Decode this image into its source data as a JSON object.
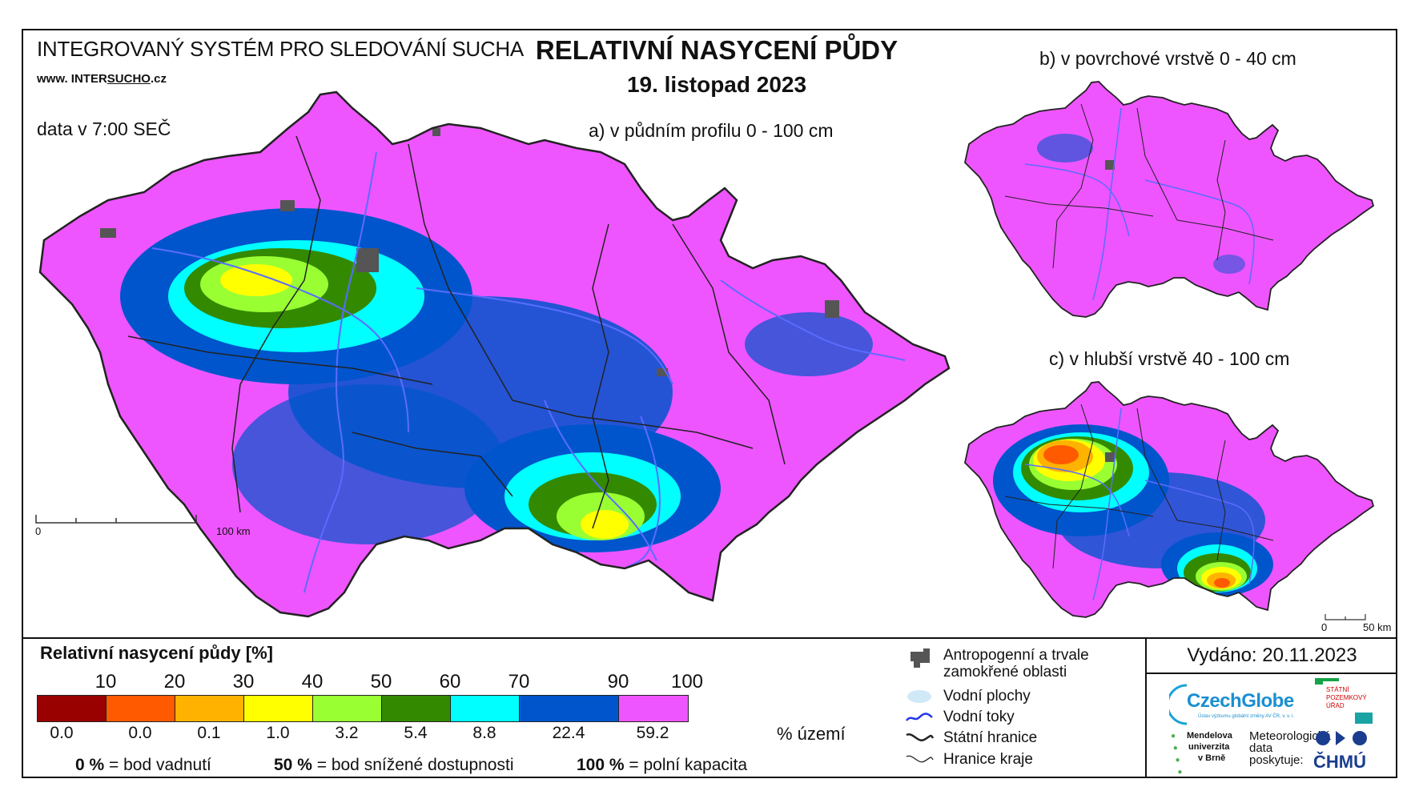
{
  "header": {
    "system_title": "INTEGROVANÝ SYSTÉM PRO SLEDOVÁNÍ SUCHA",
    "website_prefix": "www. INTER",
    "website_highlight": "SUCHO",
    "website_suffix": ".cz",
    "data_time": "data v 7:00 SEČ",
    "main_title": "RELATIVNÍ NASYCENÍ PŮDY",
    "date": "19. listopad 2023"
  },
  "maps": {
    "a_label": "a) v půdním profilu 0 - 100 cm",
    "b_label": "b) v povrchové vrstvě 0 - 40 cm",
    "c_label": "c) v hlubší vrstvě 40 - 100 cm",
    "scale_a": {
      "start": "0",
      "end": "100 km"
    },
    "scale_c": {
      "start": "0",
      "end": "50 km"
    }
  },
  "legend": {
    "title": "Relativní nasycení půdy [%]",
    "ticks": [
      "10",
      "20",
      "30",
      "40",
      "50",
      "60",
      "70",
      "90",
      "100"
    ],
    "colors": [
      "#990000",
      "#ff5a00",
      "#ffb300",
      "#ffff00",
      "#99ff33",
      "#338a00",
      "#00ffff",
      "#0055cc",
      "#ee55ff"
    ],
    "area_percent": [
      "0.0",
      "0.0",
      "0.1",
      "1.0",
      "3.2",
      "5.4",
      "8.8",
      "22.4",
      "59.2"
    ],
    "area_unit": "% území",
    "note_0_value": "0 %",
    "note_0_text": "= bod vadnutí",
    "note_50_value": "50 %",
    "note_50_text": "= bod snížené dostupnosti",
    "note_100_value": "100 %",
    "note_100_text": "= polní kapacita"
  },
  "symbols": {
    "anthropogenic": "Antropogenní a trvale zamokřené oblasti",
    "water_bodies": "Vodní plochy",
    "rivers": "Vodní toky",
    "state_border": "Státní hranice",
    "region_border": "Hranice kraje"
  },
  "footer": {
    "issued": "Vydáno: 20.11.2023",
    "czechglobe": "CzechGlobe",
    "czechglobe_sub": "Ústav výzkumu globální změny AV ČR, v. v. i.",
    "spu_line1": "STÁTNÍ",
    "spu_line2": "POZEMKOVÝ",
    "spu_line3": "ÚŘAD",
    "mendel_line1": "Mendelova",
    "mendel_line2": "univerzita",
    "mendel_line3": "v Brně",
    "met_line1": "Meteorologická",
    "met_line2": "data",
    "met_line3": "poskytuje:",
    "chmu": "ČHMÚ"
  }
}
